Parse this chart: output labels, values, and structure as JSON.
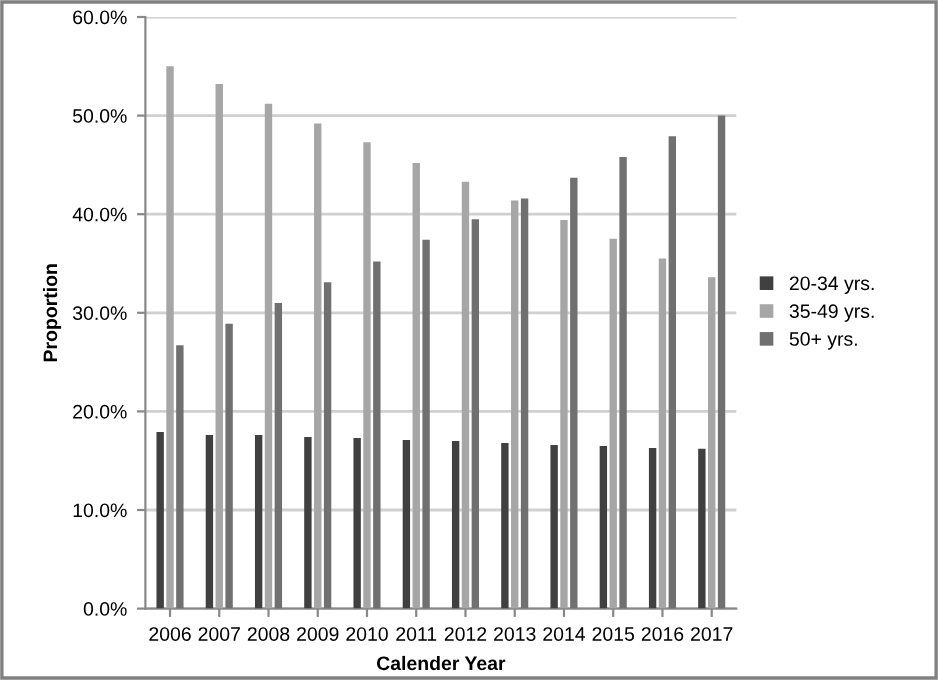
{
  "chart_data": {
    "type": "bar",
    "xlabel": "Calender Year",
    "ylabel": "Proportion",
    "categories": [
      "2006",
      "2007",
      "2008",
      "2009",
      "2010",
      "2011",
      "2012",
      "2013",
      "2014",
      "2015",
      "2016",
      "2017"
    ],
    "series": [
      {
        "name": "20-34 yrs.",
        "color": "#404040",
        "values": [
          17.9,
          17.6,
          17.6,
          17.4,
          17.3,
          17.1,
          17.0,
          16.8,
          16.6,
          16.5,
          16.3,
          16.2
        ]
      },
      {
        "name": "35-49 yrs.",
        "color": "#a6a6a6",
        "values": [
          55.0,
          53.2,
          51.2,
          49.2,
          47.3,
          45.2,
          43.3,
          41.4,
          39.4,
          37.5,
          35.5,
          33.6
        ]
      },
      {
        "name": "50+ yrs.",
        "color": "#707070",
        "values": [
          26.7,
          28.9,
          31.0,
          33.1,
          35.2,
          37.4,
          39.5,
          41.6,
          43.7,
          45.8,
          47.9,
          50.0
        ]
      }
    ],
    "ylim": [
      0,
      60
    ],
    "yticks": [
      {
        "value": 0,
        "label": "0.0%"
      },
      {
        "value": 10,
        "label": "10.0%"
      },
      {
        "value": 20,
        "label": "20.0%"
      },
      {
        "value": 30,
        "label": "30.0%"
      },
      {
        "value": 40,
        "label": "40.0%"
      },
      {
        "value": 50,
        "label": "50.0%"
      },
      {
        "value": 60,
        "label": "60.0%"
      }
    ],
    "grid": "y",
    "legend": "right"
  }
}
